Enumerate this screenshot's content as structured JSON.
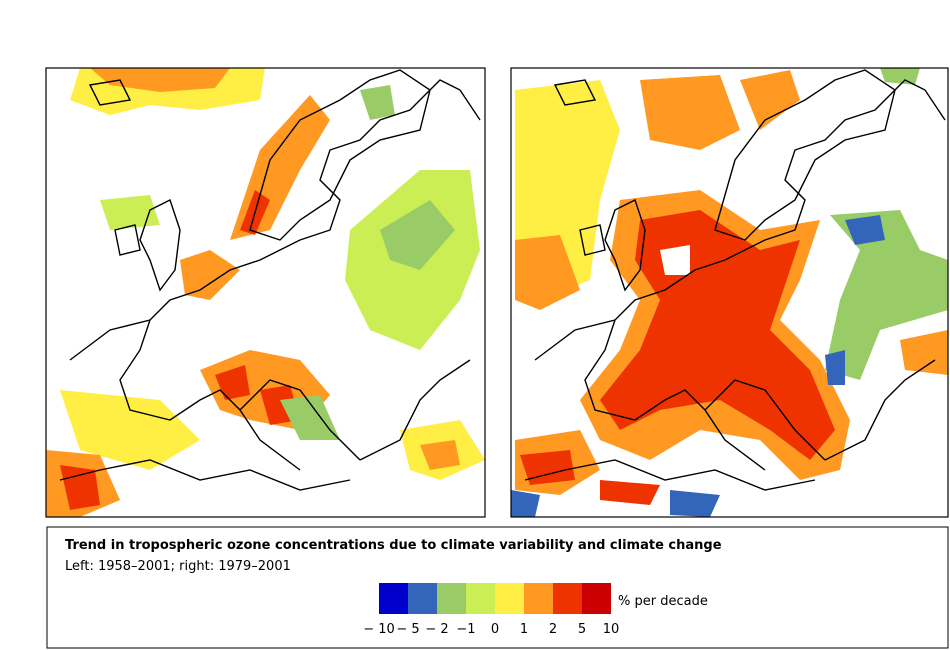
{
  "caption": {
    "title": "Trend in tropospheric ozone concentrations due to climate variability and climate change",
    "subtitle": "Left: 1958–2001; right: 1979–2001"
  },
  "legend": {
    "unit": "% per decade",
    "colors": [
      "#0000cc",
      "#3366bb",
      "#99cc66",
      "#ccee55",
      "#ffee44",
      "#ff9922",
      "#ee3300",
      "#cc0000"
    ],
    "labels": [
      "− 10",
      "− 5",
      "− 2",
      "−1",
      "0",
      "1",
      "2",
      "5",
      "10"
    ]
  }
}
